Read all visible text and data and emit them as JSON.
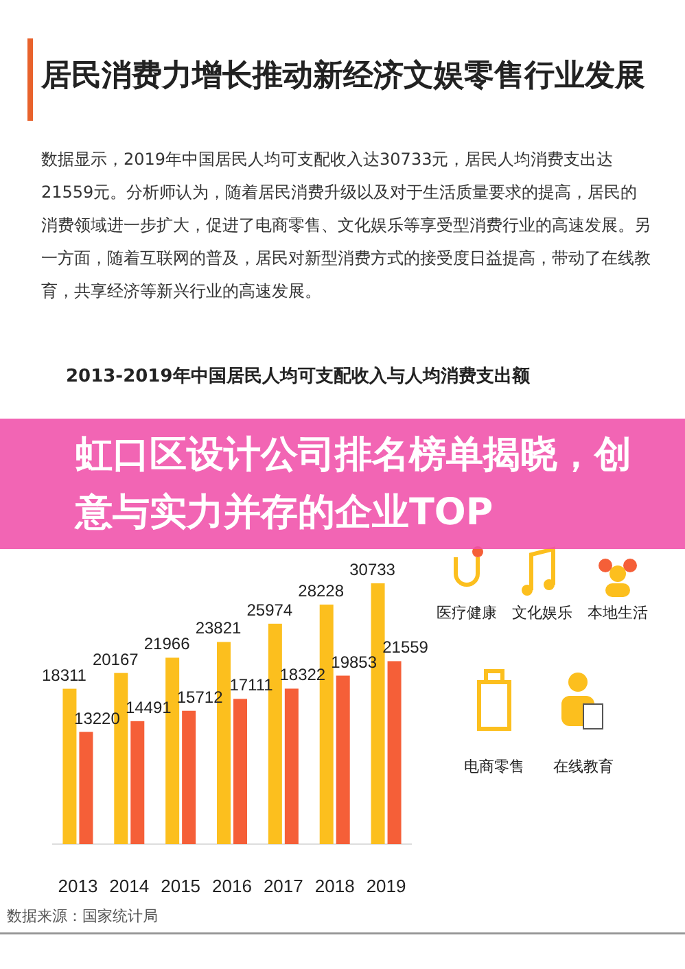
{
  "chart_data": {
    "type": "bar",
    "title": "2013-2019年中国居民人均可支配收入与人均消费支出额",
    "categories": [
      "2013",
      "2014",
      "2015",
      "2016",
      "2017",
      "2018",
      "2019"
    ],
    "series": [
      {
        "color": "#fcbf1e",
        "values": [
          18311,
          20167,
          21966,
          23821,
          25974,
          28228,
          30733
        ]
      },
      {
        "color": "#f55f38",
        "values": [
          13220,
          14491,
          15712,
          17111,
          18322,
          19853,
          21559
        ]
      }
    ],
    "data_labels": true,
    "annotations": [
      "居民消费力增长推动新经济文娱零售行业发展",
      "数据显示，2019年中国居民人均可支配收入达30733元，居民人均消费支出达21559元。分析师认为，随着居民消费升级以及对于生活质量要求的提高，居民的消费领域进一步扩大，促进了电商零售、文化娱乐等享受型消费行业的高速发展。另一方面，随着互联网的普及，居民对新型消费方式的接受度日益提高，带动了在线教育，共享经济等新兴行业的高速发展。",
      "数据来源：国家统计局",
      "虹口区设计公司排名榜单揭晓，创意与实力并存的企业TOP",
      "医疗健康",
      "文化娱乐",
      "本地生活",
      "电商零售",
      "在线教育"
    ]
  }
}
